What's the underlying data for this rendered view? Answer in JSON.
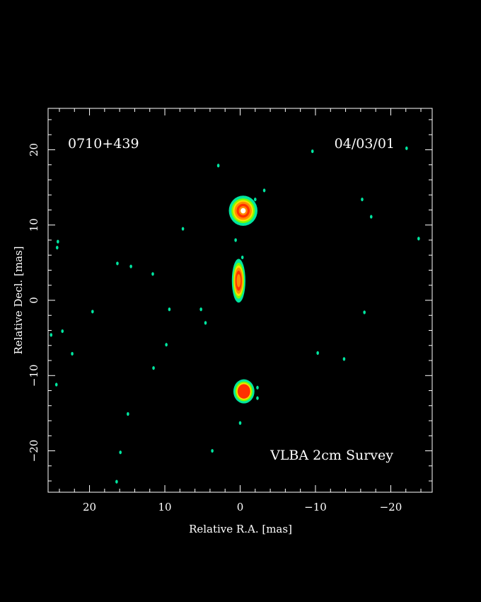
{
  "chart_data": {
    "type": "heatmap",
    "source_label": "0710+439",
    "date_label": "04/03/01",
    "survey_label": "VLBA 2cm Survey",
    "xlabel": "Relative R.A. [mas]",
    "ylabel": "Relative Decl. [mas]",
    "xlim": [
      25.5,
      -25.5
    ],
    "ylim": [
      -25.5,
      25.5
    ],
    "x_ticks": [
      {
        "value": 20,
        "label": "20"
      },
      {
        "value": 10,
        "label": "10"
      },
      {
        "value": 0,
        "label": "0"
      },
      {
        "value": -10,
        "label": "−10"
      },
      {
        "value": -20,
        "label": "−20"
      }
    ],
    "y_ticks": [
      {
        "value": 20,
        "label": "20"
      },
      {
        "value": 10,
        "label": "10"
      },
      {
        "value": 0,
        "label": "0"
      },
      {
        "value": -10,
        "label": "−10"
      },
      {
        "value": -20,
        "label": "−20"
      }
    ],
    "grid": false,
    "colors": {
      "background": "#000000",
      "frame": "#ffffff",
      "low": "#00e6a0",
      "mid_low": "#7cfc00",
      "mid": "#ffdd00",
      "mid_high": "#ff8c00",
      "high": "#ff3000",
      "peak": "#ffffff"
    },
    "components": [
      {
        "x": -0.4,
        "y": 11.9,
        "sx": 1.9,
        "sy": 2.0,
        "peak": 1.0
      },
      {
        "x": 0.2,
        "y": 2.6,
        "sx": 0.9,
        "sy": 2.9,
        "peak": 0.85
      },
      {
        "x": -0.5,
        "y": -12.1,
        "sx": 1.4,
        "sy": 1.6,
        "peak": 0.55
      }
    ],
    "noise_spots": [
      {
        "x": 24.2,
        "y": 7.8
      },
      {
        "x": 24.3,
        "y": 7.0
      },
      {
        "x": 16.3,
        "y": 4.9
      },
      {
        "x": 14.5,
        "y": 4.5
      },
      {
        "x": 11.6,
        "y": 3.5
      },
      {
        "x": 19.6,
        "y": -1.5
      },
      {
        "x": 9.4,
        "y": -1.2
      },
      {
        "x": 5.2,
        "y": -1.2
      },
      {
        "x": 4.6,
        "y": -3.0
      },
      {
        "x": 23.6,
        "y": -4.1
      },
      {
        "x": 9.8,
        "y": -5.9
      },
      {
        "x": 22.3,
        "y": -7.1
      },
      {
        "x": 11.5,
        "y": -9.0
      },
      {
        "x": 24.4,
        "y": -11.2
      },
      {
        "x": 14.9,
        "y": -15.1
      },
      {
        "x": 15.9,
        "y": -20.2
      },
      {
        "x": 16.4,
        "y": -24.1
      },
      {
        "x": 3.7,
        "y": -20.0
      },
      {
        "x": 7.6,
        "y": 9.5
      },
      {
        "x": 0.6,
        "y": 8.0
      },
      {
        "x": -3.2,
        "y": 14.6
      },
      {
        "x": -2.0,
        "y": 13.4
      },
      {
        "x": -16.2,
        "y": 13.4
      },
      {
        "x": -17.4,
        "y": 11.1
      },
      {
        "x": -23.7,
        "y": 8.2
      },
      {
        "x": -16.5,
        "y": -1.6
      },
      {
        "x": -10.3,
        "y": -7.0
      },
      {
        "x": -13.8,
        "y": -7.8
      },
      {
        "x": -22.1,
        "y": 20.2
      },
      {
        "x": -9.6,
        "y": 19.8
      },
      {
        "x": 2.9,
        "y": 17.9
      },
      {
        "x": -0.3,
        "y": 5.7
      },
      {
        "x": -2.3,
        "y": -13.0
      },
      {
        "x": -2.3,
        "y": -11.6
      },
      {
        "x": 0.0,
        "y": -16.3
      },
      {
        "x": 25.1,
        "y": -4.6
      }
    ]
  }
}
